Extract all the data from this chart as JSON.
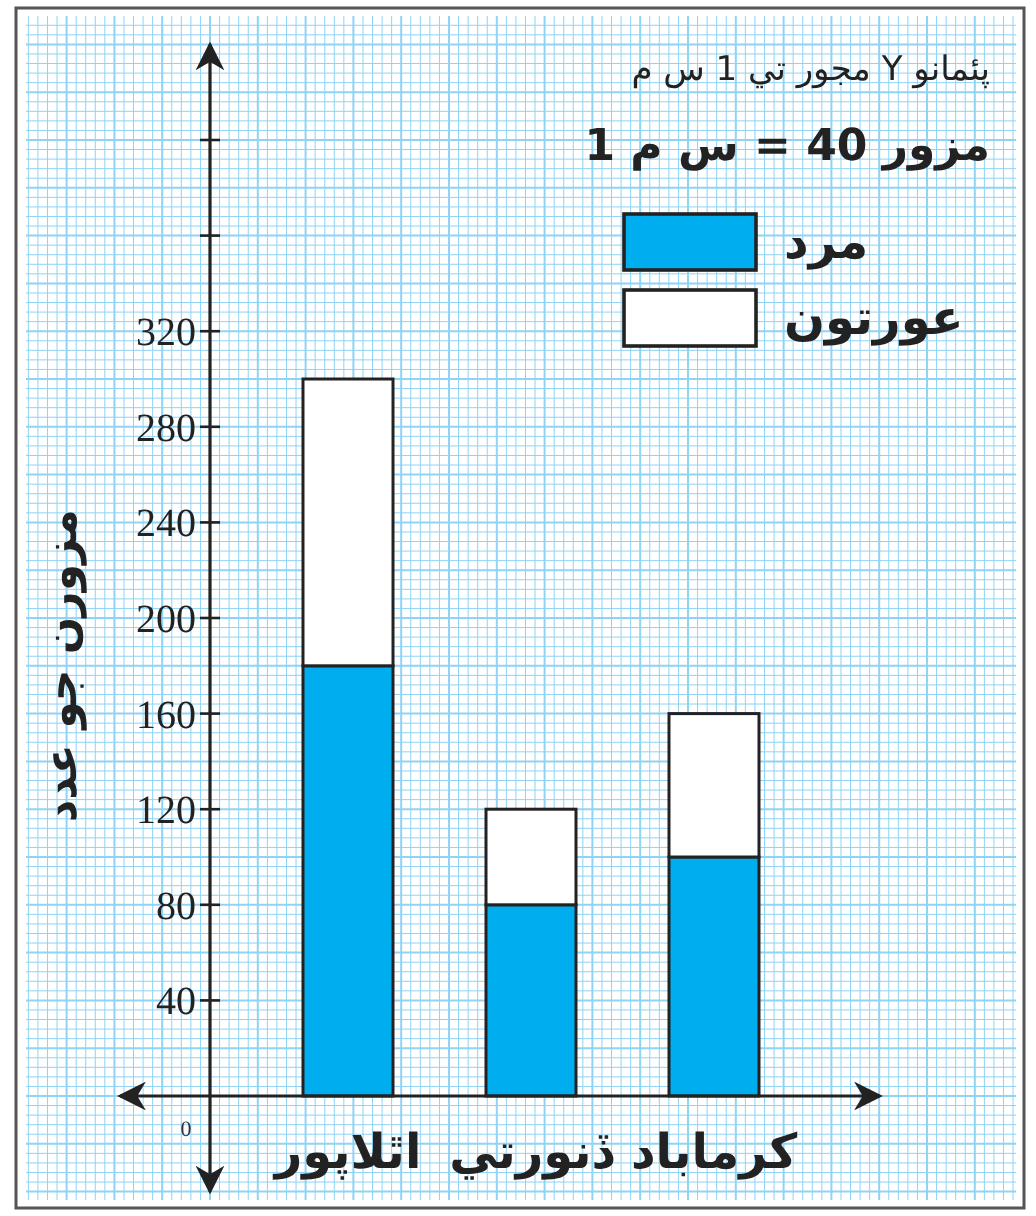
{
  "chart_data": {
    "type": "bar",
    "stacked": true,
    "categories": [
      "اٿلاپور",
      "ڏنورتي",
      "كرماباد"
    ],
    "series": [
      {
        "name": "مرد",
        "color": "#00aeef",
        "values": [
          180,
          80,
          100
        ]
      },
      {
        "name": "عورتون",
        "color": "#ffffff",
        "values": [
          120,
          40,
          60
        ]
      }
    ],
    "ylabel": "مزورن جو عدد",
    "annotations": [
      "پئمانو Y مجور تي 1 س م",
      "مزور 40 = س م 1",
      "0"
    ],
    "ylim": [
      -40,
      440
    ],
    "yticks": [
      40,
      80,
      120,
      160,
      200,
      240,
      280,
      320,
      {
        "value": 360,
        "label": null
      },
      {
        "value": 400,
        "label": null
      }
    ],
    "grid": true,
    "legend": "top right"
  }
}
